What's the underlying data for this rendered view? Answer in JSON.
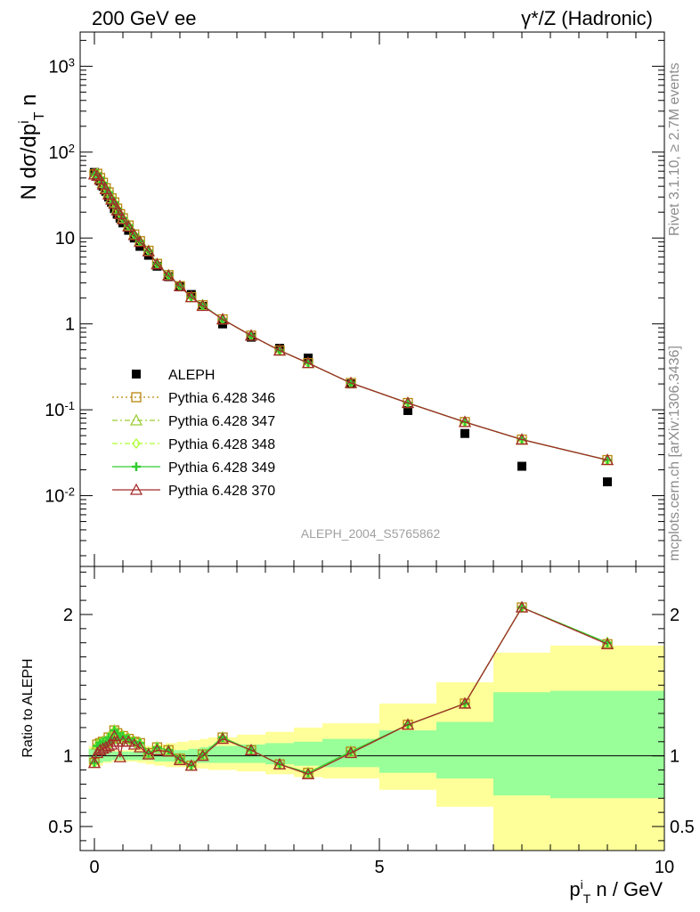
{
  "header": {
    "left": "200 GeV ee",
    "right": "γ*/Z (Hadronic)"
  },
  "side_text": {
    "rivet": "Rivet 3.1.10, ≥ 2.7M events",
    "mcplots": "mcplots.cern.ch [arXiv:1306.3436]"
  },
  "watermark": "ALEPH_2004_S5765862",
  "chart_data": [
    {
      "type": "scatter",
      "panel": "main",
      "ylabel": "N dσ/dp^i_T n",
      "yscale": "log",
      "ylim": [
        0.0015,
        2500
      ],
      "xlim": [
        -0.25,
        10.0
      ],
      "y_tick_labels": [
        "10^-2",
        "10^-1",
        "1",
        "10",
        "10^2",
        "10^3"
      ],
      "legend_position": "lower-left",
      "x": [
        0.0,
        0.05,
        0.1,
        0.15,
        0.2,
        0.25,
        0.3,
        0.35,
        0.4,
        0.45,
        0.5,
        0.6,
        0.7,
        0.8,
        0.95,
        1.1,
        1.3,
        1.5,
        1.7,
        1.9,
        2.25,
        2.75,
        3.25,
        3.75,
        4.5,
        5.5,
        6.5,
        7.5,
        9.0
      ],
      "series": [
        {
          "name": "ALEPH",
          "style": "data",
          "color": "#000000",
          "values": [
            58,
            52,
            46,
            40,
            35,
            30,
            26,
            22,
            19,
            17,
            15,
            12.3,
            10.0,
            8.0,
            6.3,
            4.7,
            3.55,
            2.7,
            2.2,
            1.6,
            1.0,
            0.7,
            0.52,
            0.4,
            0.2,
            0.098,
            0.053,
            0.022,
            0.0145
          ]
        },
        {
          "name": "Pythia 6.428 346",
          "style": "square-dotted",
          "color": "#b8860b",
          "values": [
            55,
            56,
            50,
            44,
            38,
            34,
            29,
            26,
            22,
            19,
            17,
            14,
            11,
            9.2,
            7.1,
            5.0,
            3.7,
            2.75,
            2.05,
            1.65,
            1.13,
            0.73,
            0.49,
            0.35,
            0.205,
            0.12,
            0.072,
            0.045,
            0.026
          ]
        },
        {
          "name": "Pythia 6.428 347",
          "style": "triangle-dashdot",
          "color": "#9acd32",
          "values": [
            55,
            56,
            50,
            44,
            38,
            34,
            29,
            26,
            22,
            19,
            17,
            14,
            11,
            9.2,
            7.1,
            5.0,
            3.7,
            2.75,
            2.05,
            1.65,
            1.13,
            0.73,
            0.49,
            0.35,
            0.205,
            0.12,
            0.072,
            0.045,
            0.026
          ]
        },
        {
          "name": "Pythia 6.428 348",
          "style": "diamond-dashdot",
          "color": "#adff2f",
          "values": [
            55,
            56,
            50,
            44,
            38,
            34,
            29,
            26,
            22,
            19,
            17,
            14,
            11,
            9.2,
            7.1,
            5.0,
            3.7,
            2.75,
            2.05,
            1.65,
            1.13,
            0.73,
            0.49,
            0.35,
            0.205,
            0.12,
            0.072,
            0.045,
            0.026
          ]
        },
        {
          "name": "Pythia 6.428 349",
          "style": "cross-solid",
          "color": "#32cd32",
          "values": [
            55,
            56,
            50,
            44,
            38,
            34,
            29,
            26,
            22,
            19,
            17,
            14,
            11,
            9.2,
            7.1,
            5.0,
            3.7,
            2.75,
            2.05,
            1.65,
            1.13,
            0.73,
            0.49,
            0.35,
            0.205,
            0.12,
            0.072,
            0.045,
            0.026
          ]
        },
        {
          "name": "Pythia 6.428 370",
          "style": "triangle-solid",
          "color": "#a52a2a",
          "values": [
            55,
            53,
            48,
            42,
            37,
            32,
            28,
            25,
            21,
            19,
            16.5,
            13.6,
            10.8,
            9.0,
            7.0,
            4.95,
            3.65,
            2.75,
            2.05,
            1.62,
            1.13,
            0.73,
            0.49,
            0.35,
            0.205,
            0.12,
            0.072,
            0.045,
            0.026
          ]
        }
      ]
    },
    {
      "type": "line",
      "panel": "ratio",
      "ylabel": "Ratio to ALEPH",
      "xlabel": "p^i_T n / GeV",
      "ylim": [
        0.33,
        2.34
      ],
      "xlim": [
        -0.25,
        10.0
      ],
      "y_tick_labels": [
        "0.5",
        "1",
        "2"
      ],
      "x_tick_labels": [
        "0",
        "5",
        "10"
      ],
      "x": [
        0.0,
        0.05,
        0.1,
        0.15,
        0.2,
        0.25,
        0.3,
        0.35,
        0.4,
        0.45,
        0.5,
        0.6,
        0.7,
        0.8,
        0.95,
        1.1,
        1.3,
        1.5,
        1.7,
        1.9,
        2.25,
        2.75,
        3.25,
        3.75,
        4.5,
        5.5,
        6.5,
        7.5,
        9.0
      ],
      "bands": {
        "edges": [
          -0.1,
          0.15,
          0.3,
          0.45,
          0.6,
          0.75,
          0.9,
          1.05,
          1.25,
          1.45,
          1.65,
          1.85,
          2.0,
          2.5,
          3.0,
          3.5,
          4.0,
          5.0,
          6.0,
          7.0,
          8.0,
          10.0
        ],
        "green_lo": [
          0.95,
          0.96,
          0.97,
          0.97,
          0.97,
          0.97,
          0.97,
          0.96,
          0.96,
          0.96,
          0.95,
          0.95,
          0.95,
          0.95,
          0.94,
          0.93,
          0.92,
          0.88,
          0.84,
          0.72,
          0.7
        ],
        "green_hi": [
          1.05,
          1.04,
          1.03,
          1.03,
          1.03,
          1.03,
          1.03,
          1.04,
          1.04,
          1.04,
          1.05,
          1.06,
          1.07,
          1.08,
          1.09,
          1.1,
          1.12,
          1.18,
          1.24,
          1.45,
          1.46
        ],
        "yellow_lo": [
          0.93,
          0.95,
          0.96,
          0.96,
          0.96,
          0.95,
          0.94,
          0.93,
          0.92,
          0.92,
          0.91,
          0.91,
          0.9,
          0.89,
          0.87,
          0.85,
          0.84,
          0.76,
          0.64,
          0.01,
          0.01
        ],
        "yellow_hi": [
          1.07,
          1.05,
          1.04,
          1.04,
          1.05,
          1.06,
          1.07,
          1.08,
          1.09,
          1.1,
          1.11,
          1.12,
          1.13,
          1.15,
          1.17,
          1.2,
          1.23,
          1.37,
          1.52,
          1.73,
          1.78
        ]
      },
      "series": [
        {
          "name": "Pythia 6.428 346",
          "color": "#b8860b",
          "values": [
            0.95,
            1.08,
            1.09,
            1.1,
            1.09,
            1.13,
            1.12,
            1.18,
            1.16,
            1.12,
            1.14,
            1.12,
            1.1,
            1.09,
            1.02,
            1.06,
            1.04,
            0.98,
            0.93,
            1.01,
            1.13,
            1.04,
            0.94,
            0.88,
            1.03,
            1.22,
            1.37,
            2.05,
            1.79
          ]
        },
        {
          "name": "Pythia 6.428 347",
          "color": "#9acd32",
          "values": [
            0.95,
            1.08,
            1.09,
            1.1,
            1.09,
            1.13,
            1.12,
            1.18,
            1.16,
            1.12,
            1.14,
            1.12,
            1.1,
            1.09,
            1.02,
            1.06,
            1.04,
            0.98,
            0.93,
            1.01,
            1.13,
            1.04,
            0.94,
            0.88,
            1.03,
            1.22,
            1.37,
            2.05,
            1.8
          ]
        },
        {
          "name": "Pythia 6.428 348",
          "color": "#adff2f",
          "values": [
            0.95,
            1.07,
            1.09,
            1.1,
            1.09,
            1.13,
            1.12,
            1.18,
            1.16,
            1.12,
            1.14,
            1.12,
            1.1,
            1.09,
            1.02,
            1.06,
            1.04,
            0.98,
            0.93,
            1.01,
            1.13,
            1.04,
            0.94,
            0.88,
            1.03,
            1.22,
            1.37,
            2.05,
            1.8
          ]
        },
        {
          "name": "Pythia 6.428 349",
          "color": "#32cd32",
          "values": [
            0.95,
            1.07,
            1.09,
            1.1,
            1.09,
            1.13,
            1.12,
            1.18,
            1.16,
            1.12,
            1.14,
            1.12,
            1.1,
            1.09,
            1.02,
            1.06,
            1.04,
            0.98,
            0.93,
            1.01,
            1.13,
            1.04,
            0.94,
            0.88,
            1.03,
            1.22,
            1.37,
            2.05,
            1.8
          ]
        },
        {
          "name": "Pythia 6.428 370",
          "color": "#a52a2a",
          "values": [
            0.95,
            1.02,
            1.04,
            1.05,
            1.06,
            1.07,
            1.08,
            1.14,
            1.1,
            0.99,
            1.1,
            1.1,
            1.08,
            1.06,
            1.01,
            1.04,
            1.03,
            0.97,
            0.93,
            1.0,
            1.12,
            1.04,
            0.94,
            0.87,
            1.02,
            1.22,
            1.37,
            2.05,
            1.79
          ]
        }
      ]
    }
  ]
}
